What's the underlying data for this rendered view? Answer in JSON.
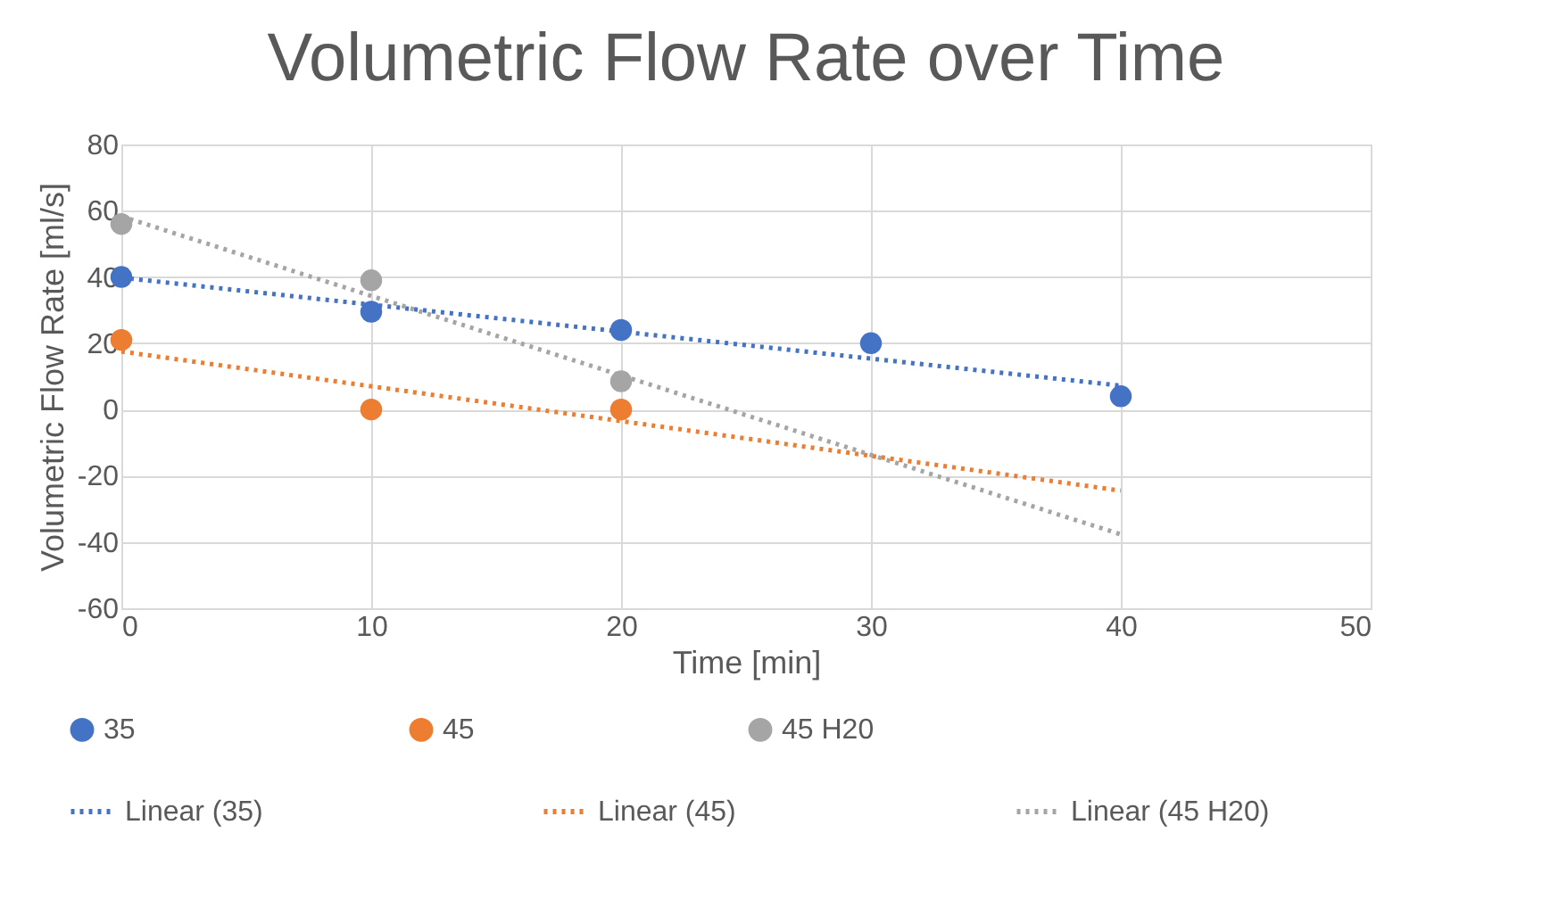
{
  "chart_data": {
    "type": "scatter",
    "title": "Volumetric Flow Rate over Time",
    "xlabel": "Time [min]",
    "ylabel": "Volumetric Flow Rate [ml/s]",
    "xlim": [
      0,
      50
    ],
    "xticks": [
      0,
      10,
      20,
      30,
      40,
      50
    ],
    "ylim": [
      -60,
      80
    ],
    "yticks": [
      -60,
      -40,
      -20,
      0,
      20,
      40,
      60,
      80
    ],
    "grid": true,
    "legend": "bottom",
    "series": [
      {
        "name": "35",
        "type": "scatter",
        "marker": "circle",
        "color": "#4472c4",
        "x": [
          0,
          10,
          20,
          30,
          40
        ],
        "values": [
          40,
          29.5,
          24,
          20,
          4
        ]
      },
      {
        "name": "45",
        "type": "scatter",
        "marker": "circle",
        "color": "#ed7d31",
        "x": [
          0,
          10,
          20
        ],
        "values": [
          21,
          0,
          0
        ]
      },
      {
        "name": "45 H20",
        "type": "scatter",
        "marker": "circle",
        "color": "#a5a5a5",
        "x": [
          0,
          10,
          20
        ],
        "values": [
          56,
          39,
          8.5
        ]
      },
      {
        "name": "Linear (35)",
        "type": "line",
        "marker": "none",
        "line_style": "dotted",
        "color": "#4472c4",
        "x": [
          0,
          40
        ],
        "values": [
          39.8,
          7.2
        ]
      },
      {
        "name": "Linear (45)",
        "type": "line",
        "marker": "none",
        "line_style": "dotted",
        "color": "#ed7d31",
        "x": [
          0,
          40
        ],
        "values": [
          17.5,
          -24.5
        ]
      },
      {
        "name": "Linear (45 H20)",
        "type": "line",
        "marker": "none",
        "line_style": "dotted",
        "color": "#a5a5a5",
        "x": [
          0,
          40
        ],
        "values": [
          58.3,
          -37.7
        ]
      }
    ]
  }
}
